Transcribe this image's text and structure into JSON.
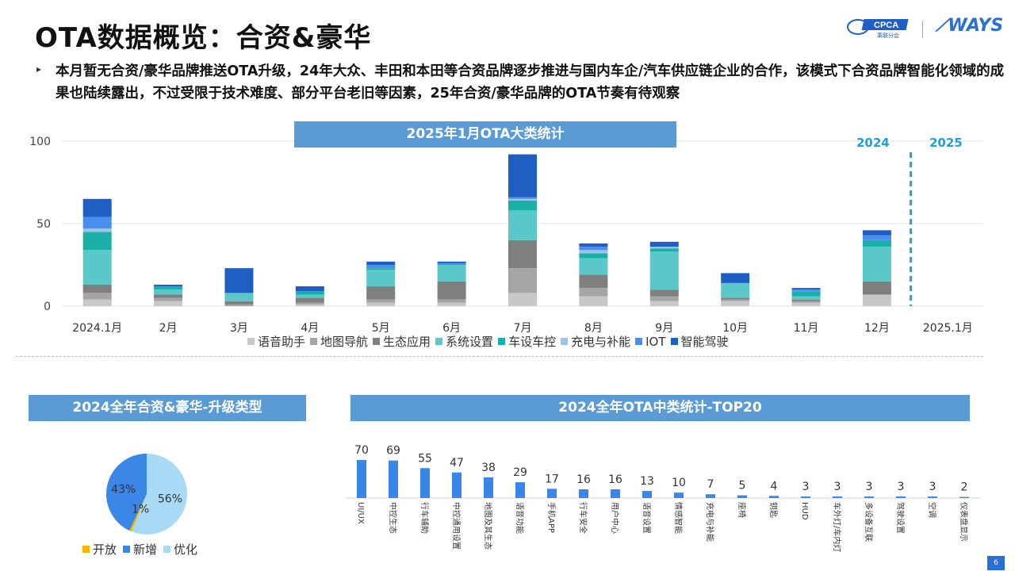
{
  "header": {
    "title": "OTA数据概览：合资&豪华",
    "logo_cpca_text": "CPCA",
    "logo_cpca_sub": "乘联分会",
    "logo_ways_text": "WAYS"
  },
  "summary": {
    "bullet": "▸",
    "text": "本月暂无合资/豪华品牌推送OTA升级，24年大众、丰田和本田等合资品牌逐步推进与国内车企/汽车供应链企业的合作，该模式下合资品牌智能化领域的成果也陆续露出，不过受限于技术难度、部分平台老旧等因素，25年合资/豪华品牌的OTA节奏有待观察"
  },
  "page_number": "6",
  "colors": {
    "banner": "#5b9bd5",
    "year_label": "#1fa0d8",
    "accent_blue": "#2a6fd6"
  },
  "chart_data": [
    {
      "type": "bar",
      "stacked": true,
      "title": "2025年1月OTA大类统计",
      "categories": [
        "2024.1月",
        "2月",
        "3月",
        "4月",
        "5月",
        "6月",
        "7月",
        "8月",
        "9月",
        "10月",
        "11月",
        "12月",
        "2025.1月"
      ],
      "ylim": [
        0,
        100
      ],
      "yticks": [
        0,
        50,
        100
      ],
      "legend_position": "bottom",
      "annotations": [
        "2024",
        "2025"
      ],
      "series": [
        {
          "name": "语音助手",
          "color": "#c8c8c8",
          "values": [
            4,
            3,
            0,
            1,
            2,
            2,
            8,
            6,
            3,
            3,
            2,
            7,
            0
          ]
        },
        {
          "name": "地图导航",
          "color": "#a5a5a5",
          "values": [
            4,
            2,
            1,
            1,
            2,
            2,
            15,
            5,
            3,
            1,
            1,
            0,
            0
          ]
        },
        {
          "name": "生态应用",
          "color": "#7f7f7f",
          "values": [
            5,
            2,
            2,
            3,
            8,
            11,
            17,
            8,
            4,
            1,
            1,
            8,
            0
          ]
        },
        {
          "name": "系统设置",
          "color": "#5ac8c8",
          "values": [
            21,
            3,
            5,
            2,
            10,
            10,
            18,
            10,
            23,
            9,
            2,
            21,
            0
          ]
        },
        {
          "name": "车设车控",
          "color": "#1ab0a8",
          "values": [
            11,
            2,
            0,
            2,
            1,
            0,
            6,
            3,
            2,
            0,
            3,
            4,
            0
          ]
        },
        {
          "name": "充电与补能",
          "color": "#9dc3e6",
          "values": [
            2,
            0,
            0,
            0,
            0,
            0,
            1,
            2,
            1,
            0,
            0,
            0,
            0
          ]
        },
        {
          "name": "IOT",
          "color": "#4a8ff0",
          "values": [
            7,
            0,
            0,
            0,
            2,
            1,
            1,
            2,
            0,
            0,
            1,
            3,
            0
          ]
        },
        {
          "name": "智能驾驶",
          "color": "#1f5fc4",
          "values": [
            11,
            1,
            15,
            3,
            2,
            1,
            26,
            2,
            3,
            6,
            1,
            3,
            0
          ]
        }
      ]
    },
    {
      "type": "pie",
      "title": "2024全年合资&豪华-升级类型",
      "slices": [
        {
          "name": "开放",
          "value": 1,
          "label": "1%",
          "color": "#f5b800"
        },
        {
          "name": "新增",
          "value": 43,
          "label": "43%",
          "color": "#3a87e8"
        },
        {
          "name": "优化",
          "value": 56,
          "label": "56%",
          "color": "#a8daf5"
        }
      ]
    },
    {
      "type": "bar",
      "title": "2024全年OTA中类统计-TOP20",
      "categories": [
        "UI/UX",
        "中控生态",
        "行车辅助",
        "中控通用设置",
        "地图及其生态",
        "语音功能",
        "手机APP",
        "行车安全",
        "用户中心",
        "语音设置",
        "情感智能",
        "充电与补能",
        "座椅",
        "钥匙",
        "HUD",
        "车外灯/车内灯",
        "多设备互联",
        "驾驶设置",
        "空调",
        "仪表盘显示"
      ],
      "values": [
        70,
        69,
        55,
        47,
        38,
        29,
        17,
        16,
        16,
        13,
        10,
        7,
        5,
        4,
        3,
        3,
        3,
        3,
        3,
        2
      ],
      "color": "#3a87e8"
    }
  ]
}
